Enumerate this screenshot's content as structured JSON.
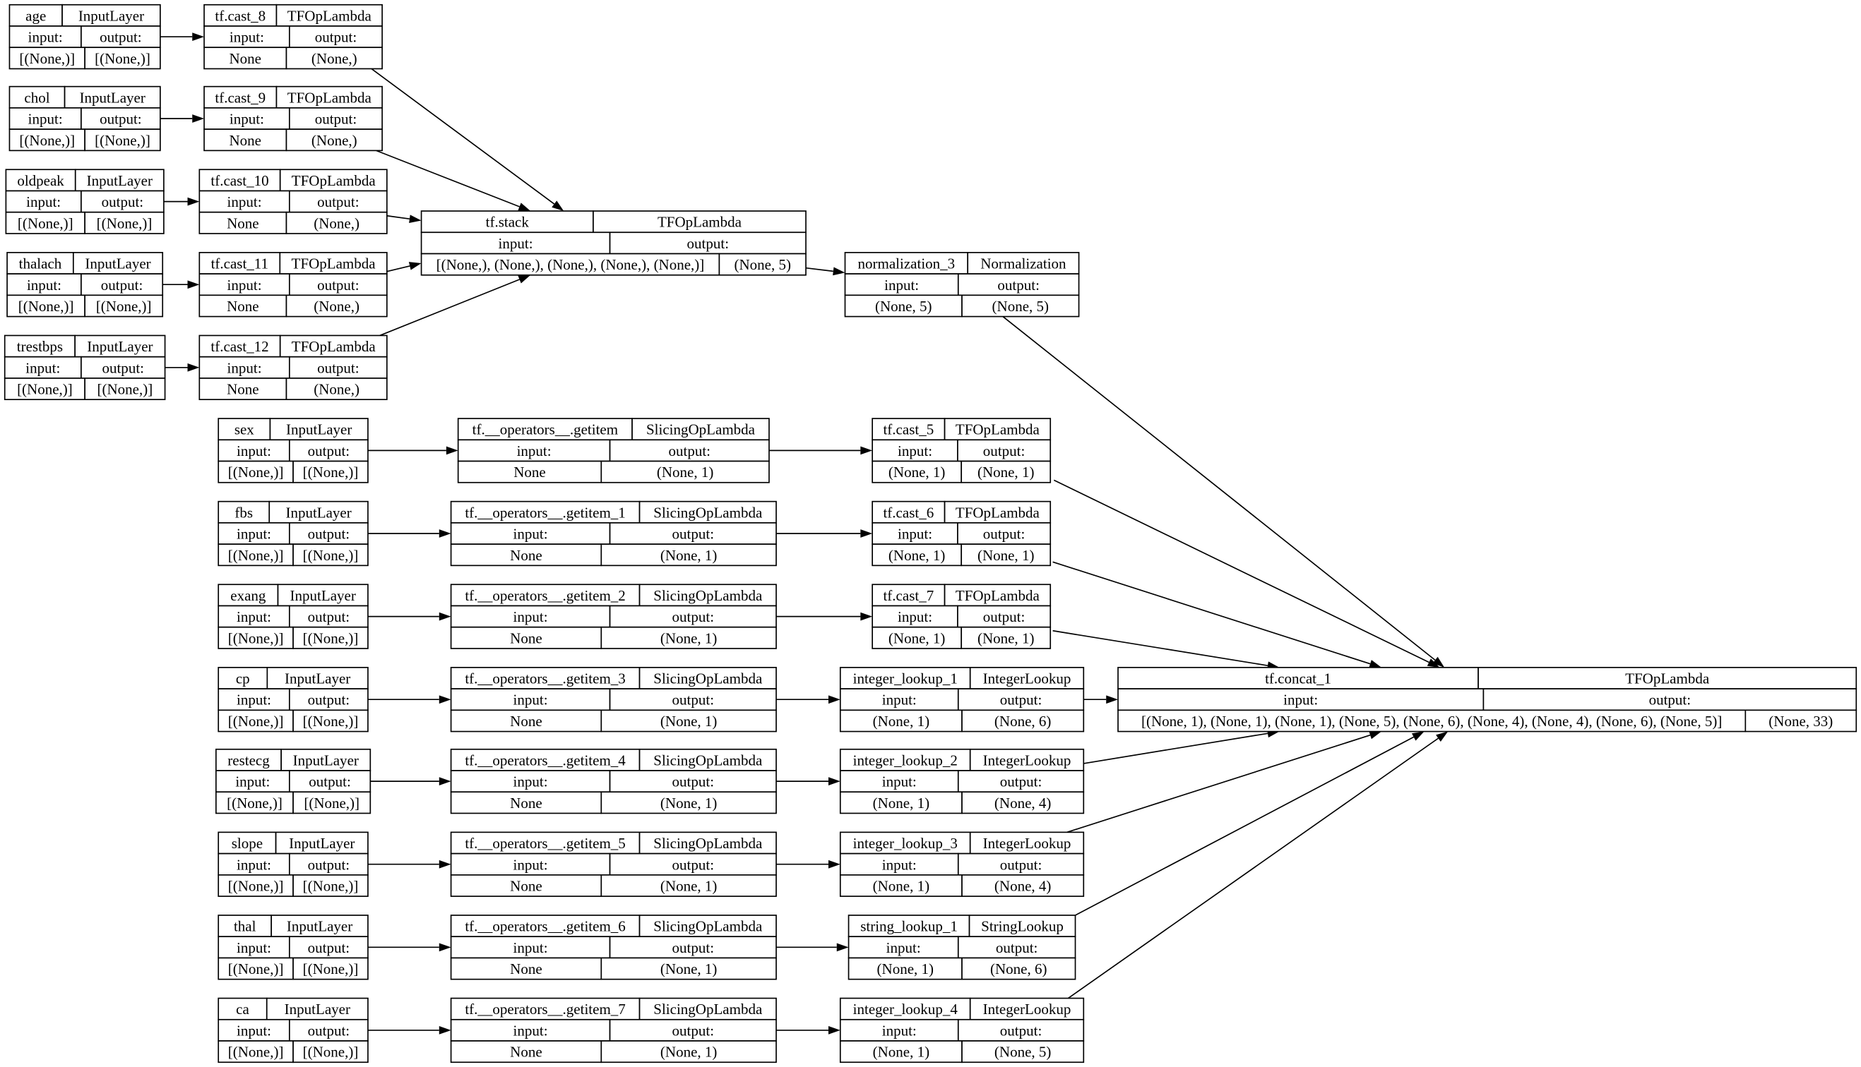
{
  "nodes": [
    {
      "id": "age",
      "name": "age",
      "type": "InputLayer",
      "input": "[(None,)]",
      "output": "[(None,)]"
    },
    {
      "id": "chol",
      "name": "chol",
      "type": "InputLayer",
      "input": "[(None,)]",
      "output": "[(None,)]"
    },
    {
      "id": "oldpeak",
      "name": "oldpeak",
      "type": "InputLayer",
      "input": "[(None,)]",
      "output": "[(None,)]"
    },
    {
      "id": "thalach",
      "name": "thalach",
      "type": "InputLayer",
      "input": "[(None,)]",
      "output": "[(None,)]"
    },
    {
      "id": "trestbps",
      "name": "trestbps",
      "type": "InputLayer",
      "input": "[(None,)]",
      "output": "[(None,)]"
    },
    {
      "id": "cast8",
      "name": "tf.cast_8",
      "type": "TFOpLambda",
      "input": "None",
      "output": "(None,)"
    },
    {
      "id": "cast9",
      "name": "tf.cast_9",
      "type": "TFOpLambda",
      "input": "None",
      "output": "(None,)"
    },
    {
      "id": "cast10",
      "name": "tf.cast_10",
      "type": "TFOpLambda",
      "input": "None",
      "output": "(None,)"
    },
    {
      "id": "cast11",
      "name": "tf.cast_11",
      "type": "TFOpLambda",
      "input": "None",
      "output": "(None,)"
    },
    {
      "id": "cast12",
      "name": "tf.cast_12",
      "type": "TFOpLambda",
      "input": "None",
      "output": "(None,)"
    },
    {
      "id": "stack",
      "name": "tf.stack",
      "type": "TFOpLambda",
      "input": "[(None,), (None,), (None,), (None,), (None,)]",
      "output": "(None, 5)"
    },
    {
      "id": "norm",
      "name": "normalization_3",
      "type": "Normalization",
      "input": "(None, 5)",
      "output": "(None, 5)"
    },
    {
      "id": "sex",
      "name": "sex",
      "type": "InputLayer",
      "input": "[(None,)]",
      "output": "[(None,)]"
    },
    {
      "id": "fbs",
      "name": "fbs",
      "type": "InputLayer",
      "input": "[(None,)]",
      "output": "[(None,)]"
    },
    {
      "id": "exang",
      "name": "exang",
      "type": "InputLayer",
      "input": "[(None,)]",
      "output": "[(None,)]"
    },
    {
      "id": "cp",
      "name": "cp",
      "type": "InputLayer",
      "input": "[(None,)]",
      "output": "[(None,)]"
    },
    {
      "id": "restecg",
      "name": "restecg",
      "type": "InputLayer",
      "input": "[(None,)]",
      "output": "[(None,)]"
    },
    {
      "id": "slope",
      "name": "slope",
      "type": "InputLayer",
      "input": "[(None,)]",
      "output": "[(None,)]"
    },
    {
      "id": "thal",
      "name": "thal",
      "type": "InputLayer",
      "input": "[(None,)]",
      "output": "[(None,)]"
    },
    {
      "id": "ca",
      "name": "ca",
      "type": "InputLayer",
      "input": "[(None,)]",
      "output": "[(None,)]"
    },
    {
      "id": "gi0",
      "name": "tf.__operators__.getitem",
      "type": "SlicingOpLambda",
      "input": "None",
      "output": "(None, 1)"
    },
    {
      "id": "gi1",
      "name": "tf.__operators__.getitem_1",
      "type": "SlicingOpLambda",
      "input": "None",
      "output": "(None, 1)"
    },
    {
      "id": "gi2",
      "name": "tf.__operators__.getitem_2",
      "type": "SlicingOpLambda",
      "input": "None",
      "output": "(None, 1)"
    },
    {
      "id": "gi3",
      "name": "tf.__operators__.getitem_3",
      "type": "SlicingOpLambda",
      "input": "None",
      "output": "(None, 1)"
    },
    {
      "id": "gi4",
      "name": "tf.__operators__.getitem_4",
      "type": "SlicingOpLambda",
      "input": "None",
      "output": "(None, 1)"
    },
    {
      "id": "gi5",
      "name": "tf.__operators__.getitem_5",
      "type": "SlicingOpLambda",
      "input": "None",
      "output": "(None, 1)"
    },
    {
      "id": "gi6",
      "name": "tf.__operators__.getitem_6",
      "type": "SlicingOpLambda",
      "input": "None",
      "output": "(None, 1)"
    },
    {
      "id": "gi7",
      "name": "tf.__operators__.getitem_7",
      "type": "SlicingOpLambda",
      "input": "None",
      "output": "(None, 1)"
    },
    {
      "id": "cast5",
      "name": "tf.cast_5",
      "type": "TFOpLambda",
      "input": "(None, 1)",
      "output": "(None, 1)"
    },
    {
      "id": "cast6",
      "name": "tf.cast_6",
      "type": "TFOpLambda",
      "input": "(None, 1)",
      "output": "(None, 1)"
    },
    {
      "id": "cast7",
      "name": "tf.cast_7",
      "type": "TFOpLambda",
      "input": "(None, 1)",
      "output": "(None, 1)"
    },
    {
      "id": "il1",
      "name": "integer_lookup_1",
      "type": "IntegerLookup",
      "input": "(None, 1)",
      "output": "(None, 6)"
    },
    {
      "id": "il2",
      "name": "integer_lookup_2",
      "type": "IntegerLookup",
      "input": "(None, 1)",
      "output": "(None, 4)"
    },
    {
      "id": "il3",
      "name": "integer_lookup_3",
      "type": "IntegerLookup",
      "input": "(None, 1)",
      "output": "(None, 4)"
    },
    {
      "id": "sl1",
      "name": "string_lookup_1",
      "type": "StringLookup",
      "input": "(None, 1)",
      "output": "(None, 6)"
    },
    {
      "id": "il4",
      "name": "integer_lookup_4",
      "type": "IntegerLookup",
      "input": "(None, 1)",
      "output": "(None, 5)"
    },
    {
      "id": "concat",
      "name": "tf.concat_1",
      "type": "TFOpLambda",
      "input": "[(None, 1), (None, 1), (None, 1), (None, 5), (None, 6), (None, 4), (None, 4), (None, 6), (None, 5)]",
      "output": "(None, 33)"
    }
  ],
  "labels": {
    "input": "input:",
    "output": "output:"
  },
  "edges": [
    [
      "age",
      "cast8"
    ],
    [
      "chol",
      "cast9"
    ],
    [
      "oldpeak",
      "cast10"
    ],
    [
      "thalach",
      "cast11"
    ],
    [
      "trestbps",
      "cast12"
    ],
    [
      "cast8",
      "stack"
    ],
    [
      "cast9",
      "stack"
    ],
    [
      "cast10",
      "stack"
    ],
    [
      "cast11",
      "stack"
    ],
    [
      "cast12",
      "stack"
    ],
    [
      "stack",
      "norm"
    ],
    [
      "norm",
      "concat"
    ],
    [
      "sex",
      "gi0"
    ],
    [
      "fbs",
      "gi1"
    ],
    [
      "exang",
      "gi2"
    ],
    [
      "cp",
      "gi3"
    ],
    [
      "restecg",
      "gi4"
    ],
    [
      "slope",
      "gi5"
    ],
    [
      "thal",
      "gi6"
    ],
    [
      "ca",
      "gi7"
    ],
    [
      "gi0",
      "cast5"
    ],
    [
      "gi1",
      "cast6"
    ],
    [
      "gi2",
      "cast7"
    ],
    [
      "gi3",
      "il1"
    ],
    [
      "gi4",
      "il2"
    ],
    [
      "gi5",
      "il3"
    ],
    [
      "gi6",
      "sl1"
    ],
    [
      "gi7",
      "il4"
    ],
    [
      "cast5",
      "concat"
    ],
    [
      "cast6",
      "concat"
    ],
    [
      "cast7",
      "concat"
    ],
    [
      "il1",
      "concat"
    ],
    [
      "il2",
      "concat"
    ],
    [
      "il3",
      "concat"
    ],
    [
      "sl1",
      "concat"
    ],
    [
      "il4",
      "concat"
    ]
  ]
}
